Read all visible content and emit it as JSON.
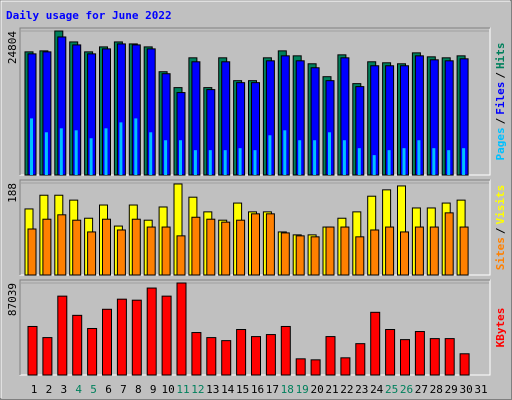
{
  "chart_data": [
    {
      "type": "bar",
      "title": "Daily usage for June 2022",
      "categories": [
        1,
        2,
        3,
        4,
        5,
        6,
        7,
        8,
        9,
        10,
        11,
        12,
        13,
        14,
        15,
        16,
        17,
        18,
        19,
        20,
        21,
        22,
        23,
        24,
        25,
        26,
        27,
        28,
        29,
        30,
        31
      ],
      "highlight_categories": [
        4,
        5,
        11,
        12,
        18,
        19,
        25,
        26
      ],
      "highlight_color": "#00805c",
      "legend_separator": "/",
      "ylim": [
        0,
        24804
      ],
      "yticks": [
        24804
      ],
      "series": [
        {
          "name": "Hits",
          "color": "#00805c",
          "values": [
            21211,
            21383,
            24804,
            22922,
            21211,
            22067,
            22922,
            22580,
            22067,
            17790,
            15053,
            20185,
            15053,
            20185,
            16251,
            16251,
            20185,
            21383,
            20527,
            19159,
            16935,
            20698,
            15738,
            19501,
            19330,
            19159,
            21040,
            20356,
            20185,
            20527,
            null
          ]
        },
        {
          "name": "Files",
          "color": "#0000ff",
          "values": [
            20869,
            21211,
            23777,
            22409,
            20869,
            21725,
            22580,
            22409,
            21725,
            17448,
            14198,
            19501,
            14711,
            19501,
            15908,
            15908,
            19672,
            20527,
            19672,
            18474,
            16251,
            20185,
            15224,
            18817,
            18817,
            18817,
            20527,
            19843,
            19672,
            20014,
            null
          ]
        },
        {
          "name": "Pages",
          "color": "#00c0ff",
          "values": [
            9750,
            7356,
            8040,
            7698,
            6329,
            8040,
            9066,
            9750,
            7356,
            5987,
            5987,
            4277,
            4277,
            4277,
            4619,
            4277,
            6842,
            7698,
            5987,
            5987,
            7356,
            5987,
            4619,
            3421,
            4277,
            4619,
            5987,
            4619,
            4277,
            4619,
            null
          ]
        }
      ]
    },
    {
      "type": "bar",
      "legend_separator": "/",
      "ylim": [
        0,
        188
      ],
      "yticks": [
        188
      ],
      "series": [
        {
          "name": "Visits",
          "color": "#ffff00",
          "values": [
            135,
            163,
            163,
            153,
            116,
            143,
            100,
            143,
            112,
            139,
            186,
            159,
            129,
            112,
            147,
            129,
            129,
            88,
            82,
            82,
            98,
            116,
            129,
            161,
            174,
            182,
            137,
            137,
            147,
            153,
            null
          ]
        },
        {
          "name": "Sites",
          "color": "#ff8000",
          "values": [
            94,
            114,
            123,
            112,
            88,
            114,
            92,
            114,
            98,
            98,
            80,
            118,
            114,
            108,
            112,
            125,
            125,
            86,
            80,
            78,
            98,
            98,
            78,
            92,
            98,
            88,
            98,
            98,
            127,
            98,
            null
          ]
        }
      ]
    },
    {
      "type": "bar",
      "ylim": [
        0,
        87039
      ],
      "yticks": [
        87039
      ],
      "series": [
        {
          "name": "KBytes",
          "color": "#ff0000",
          "values": [
            45912,
            35391,
            74607,
            56434,
            43999,
            62173,
            71738,
            70781,
            82259,
            74607,
            87039,
            40173,
            35391,
            32521,
            43043,
            36347,
            38260,
            45912,
            15304,
            14348,
            36347,
            16261,
            29652,
            59304,
            43043,
            33478,
            41129,
            34434,
            34434,
            20087,
            null
          ]
        }
      ]
    }
  ]
}
